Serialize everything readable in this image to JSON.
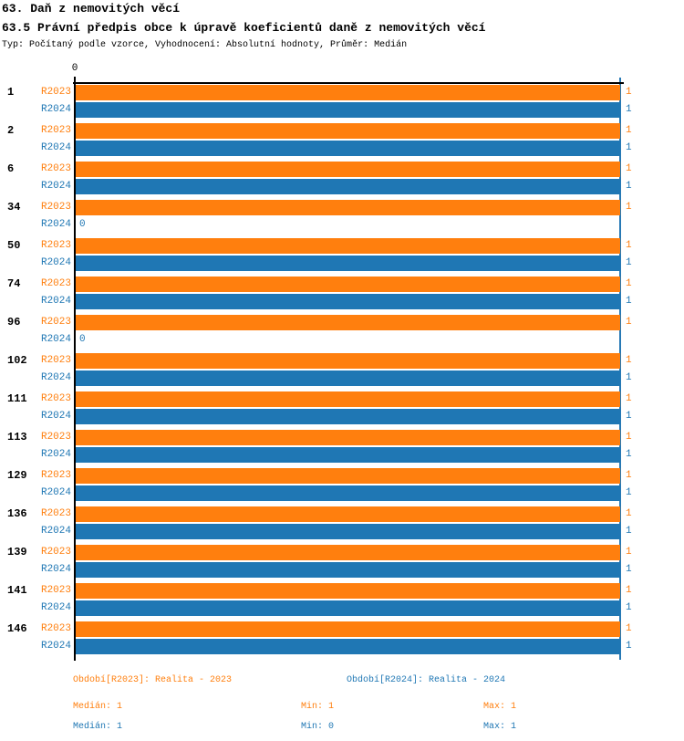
{
  "header": {
    "title": "63. Daň z nemovitých věcí",
    "subtitle": "63.5 Právní předpis obce k úpravě koeficientů daně z nemovitých věcí",
    "meta": "Typ: Počítaný podle vzorce, Vyhodnocení: Absolutní hodnoty, Průměr: Medián"
  },
  "chart_data": {
    "type": "bar",
    "orientation": "horizontal",
    "title": "63.5 Právní předpis obce k úpravě koeficientů daně z nemovitých věcí",
    "xlabel": "",
    "ylabel": "",
    "xlim": [
      0,
      1
    ],
    "axis_zero_label": "0",
    "grid": "single value line at x=1",
    "categories": [
      "1",
      "2",
      "6",
      "34",
      "50",
      "74",
      "96",
      "102",
      "111",
      "113",
      "129",
      "136",
      "139",
      "141",
      "146"
    ],
    "series": [
      {
        "name": "R2023",
        "legend_text": "Období[R2023]: Realita - 2023",
        "color": "#ff7f0e",
        "values": [
          1,
          1,
          1,
          1,
          1,
          1,
          1,
          1,
          1,
          1,
          1,
          1,
          1,
          1,
          1
        ]
      },
      {
        "name": "R2024",
        "legend_text": "Období[R2024]: Realita - 2024",
        "color": "#1f77b4",
        "values": [
          1,
          1,
          1,
          0,
          1,
          1,
          0,
          1,
          1,
          1,
          1,
          1,
          1,
          1,
          1
        ]
      }
    ],
    "stats_rows": [
      {
        "series": "R2023",
        "color": "#ff7f0e",
        "items": [
          "Medián: 1",
          "Min: 1",
          "Max: 1"
        ]
      },
      {
        "series": "R2024",
        "color": "#1f77b4",
        "items": [
          "Medián: 1",
          "Min: 0",
          "Max: 1"
        ]
      }
    ],
    "legend_position": "bottom"
  },
  "colors": {
    "orange": "#ff7f0e",
    "blue": "#1f77b4",
    "axis": "#000000",
    "value_line": "#2779b5",
    "background": "#ffffff"
  }
}
